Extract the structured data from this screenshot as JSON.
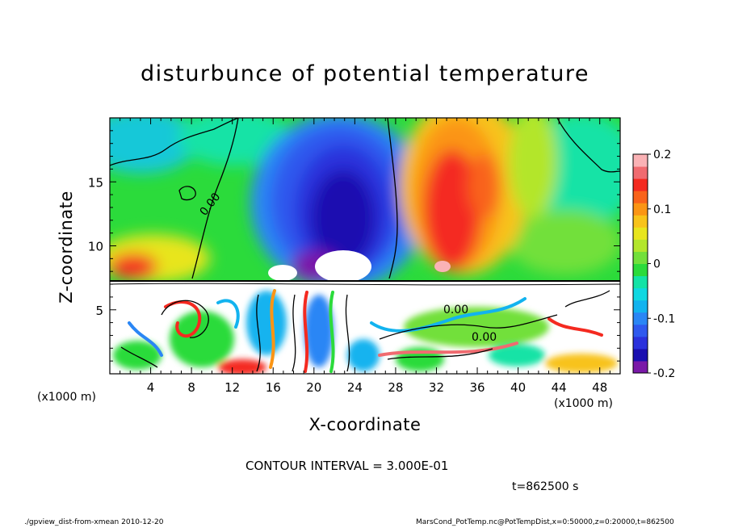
{
  "chart_data": {
    "type": "heatmap",
    "title": "disturbunce of potential temperature",
    "xlabel": "X-coordinate",
    "ylabel": "Z-coordinate",
    "x_unit_label": "(x1000 m)",
    "xlim": [
      0,
      50
    ],
    "ylim": [
      0,
      20
    ],
    "x_ticks": [
      "4",
      "8",
      "12",
      "16",
      "20",
      "24",
      "28",
      "32",
      "36",
      "40",
      "44",
      "48"
    ],
    "y_ticks": [
      "5",
      "10",
      "15"
    ],
    "colorbar": {
      "range": [
        -0.2,
        0.2
      ],
      "tick_labels": [
        "0.2",
        "0.1",
        "0",
        "-0.1",
        "-0.2"
      ],
      "colors": [
        "#7a19a8",
        "#1a0fb0",
        "#2b31dc",
        "#2f59ee",
        "#2a86f5",
        "#12b3ef",
        "#0fd8e1",
        "#13e3a6",
        "#2bdb3b",
        "#72e03b",
        "#b3e62c",
        "#e8e51d",
        "#f8c31a",
        "#fb9514",
        "#f9631a",
        "#f42a20",
        "#f06b70",
        "#fab2b5"
      ]
    },
    "contour_labels": [
      "0.00",
      "0.00",
      "0.00"
    ],
    "contour_interval": "CONTOUR INTERVAL = 3.000E-01",
    "time": "t=862500 s",
    "footer_left": "./gpview_dist-from-xmean  2010-12-20",
    "footer_right": "MarsCond_PotTemp.nc@PotTempDist,x=0:50000,z=0:20000,t=862500"
  }
}
